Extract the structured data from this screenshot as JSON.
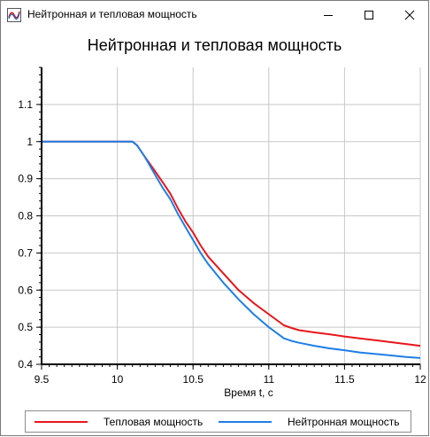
{
  "window": {
    "title": "Нейтронная и тепловая мощность",
    "icon": "wave-chart-icon",
    "controls": [
      "minimize-icon",
      "maximize-icon",
      "close-icon"
    ]
  },
  "chart_data": {
    "type": "line",
    "title": "Нейтронная и тепловая мощность",
    "xlabel": "Время t, с",
    "ylabel": "",
    "xlim": [
      9.5,
      12
    ],
    "ylim": [
      0.4,
      1.2
    ],
    "x_ticks": [
      "9.5",
      "10",
      "10.5",
      "11",
      "11.5",
      "12"
    ],
    "y_ticks": [
      "0.4",
      "0.5",
      "0.6",
      "0.7",
      "0.8",
      "0.9",
      "1",
      "1.1"
    ],
    "grid": true,
    "legend_position": "bottom",
    "series": [
      {
        "name": "Тепловая мощность",
        "color": "#e8161b",
        "x": [
          9.5,
          10.1,
          10.13,
          10.18,
          10.25,
          10.3,
          10.35,
          10.4,
          10.45,
          10.5,
          10.55,
          10.6,
          10.7,
          10.8,
          10.9,
          11.0,
          11.1,
          11.15,
          11.2,
          11.3,
          11.4,
          11.5,
          11.6,
          11.7,
          11.8,
          11.9,
          12.0
        ],
        "values": [
          1.0,
          1.0,
          0.99,
          0.96,
          0.92,
          0.89,
          0.86,
          0.82,
          0.785,
          0.755,
          0.72,
          0.69,
          0.645,
          0.6,
          0.565,
          0.535,
          0.505,
          0.498,
          0.492,
          0.486,
          0.481,
          0.475,
          0.47,
          0.465,
          0.46,
          0.455,
          0.45
        ]
      },
      {
        "name": "Нейтронная мощность",
        "color": "#1e7fe6",
        "x": [
          9.5,
          10.1,
          10.13,
          10.18,
          10.25,
          10.3,
          10.35,
          10.4,
          10.45,
          10.5,
          10.55,
          10.6,
          10.7,
          10.8,
          10.9,
          11.0,
          11.1,
          11.15,
          11.2,
          11.3,
          11.4,
          11.5,
          11.6,
          11.7,
          11.8,
          11.9,
          12.0
        ],
        "values": [
          1.0,
          1.0,
          0.99,
          0.96,
          0.91,
          0.875,
          0.845,
          0.805,
          0.77,
          0.735,
          0.7,
          0.67,
          0.62,
          0.575,
          0.535,
          0.5,
          0.47,
          0.463,
          0.458,
          0.45,
          0.443,
          0.438,
          0.432,
          0.428,
          0.424,
          0.42,
          0.417
        ]
      }
    ]
  }
}
